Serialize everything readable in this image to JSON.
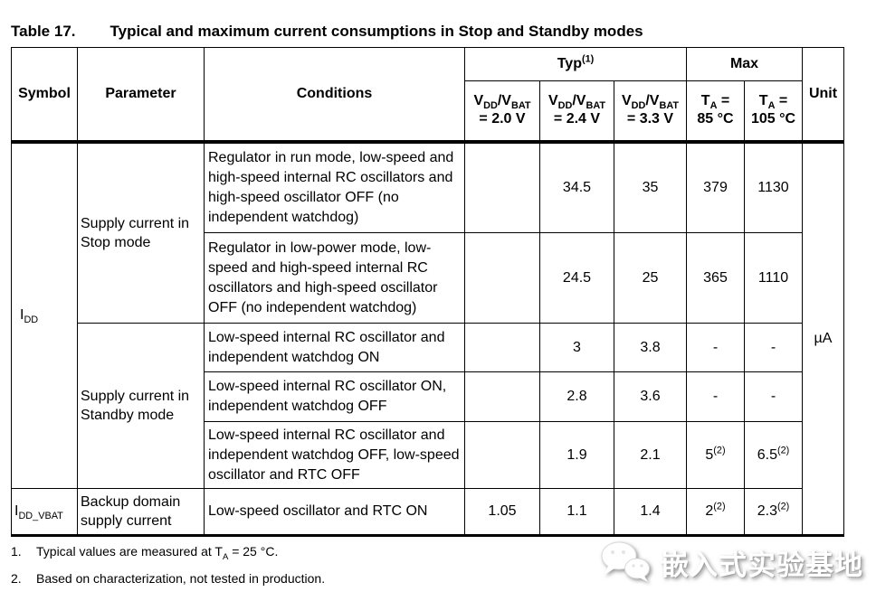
{
  "colors": {
    "border": "#000000",
    "background": "#ffffff",
    "text": "#000000",
    "watermark": "#ffffff"
  },
  "title": {
    "label": "Table 17.",
    "text": "Typical and maximum current consumptions in Stop and Standby modes"
  },
  "table": {
    "header": {
      "symbol": "Symbol",
      "parameter": "Parameter",
      "conditions": "Conditions",
      "typ_group": [
        {
          "t": "Typ"
        },
        {
          "t": "(1)",
          "m": "sup"
        }
      ],
      "max_group": "Max",
      "unit": "Unit",
      "typ_cols": [
        {
          "line1": [
            {
              "t": "V"
            },
            {
              "t": "DD",
              "m": "sub"
            },
            {
              "t": "/V"
            },
            {
              "t": "BAT",
              "m": "sub"
            }
          ],
          "line2": "= 2.0 V"
        },
        {
          "line1": [
            {
              "t": "V"
            },
            {
              "t": "DD",
              "m": "sub"
            },
            {
              "t": "/V"
            },
            {
              "t": "BAT",
              "m": "sub"
            }
          ],
          "line2": "= 2.4 V"
        },
        {
          "line1": [
            {
              "t": "V"
            },
            {
              "t": "DD",
              "m": "sub"
            },
            {
              "t": "/V"
            },
            {
              "t": "BAT",
              "m": "sub"
            }
          ],
          "line2": "= 3.3 V"
        }
      ],
      "max_cols": [
        {
          "line1": [
            {
              "t": "T"
            },
            {
              "t": "A",
              "m": "sub"
            },
            {
              "t": " ="
            }
          ],
          "line2": "85 °C"
        },
        {
          "line1": [
            {
              "t": "T"
            },
            {
              "t": "A",
              "m": "sub"
            },
            {
              "t": " ="
            }
          ],
          "line2": "105 °C"
        }
      ]
    },
    "symbols": {
      "idd": [
        {
          "t": "I"
        },
        {
          "t": "DD",
          "m": "sub"
        }
      ],
      "idd_vbat": [
        {
          "t": "I"
        },
        {
          "t": "DD_VBAT",
          "m": "sub"
        }
      ]
    },
    "parameters": {
      "stop": "Supply current in Stop mode",
      "standby": "Supply current in Standby mode",
      "backup": "Backup domain supply current"
    },
    "unit_value": "µA",
    "rows": [
      {
        "conditions": "Regulator in run mode, low-speed and high-speed internal RC oscillators and high-speed oscillator OFF (no independent watchdog)",
        "typ_20": "",
        "typ_24": "34.5",
        "typ_33": "35",
        "max_85": "379",
        "max_105": "1130"
      },
      {
        "conditions": "Regulator in low-power mode, low-speed and high-speed internal RC oscillators and high-speed oscillator OFF (no independent watchdog)",
        "typ_20": "",
        "typ_24": "24.5",
        "typ_33": "25",
        "max_85": "365",
        "max_105": "1110"
      },
      {
        "conditions": "Low-speed internal RC oscillator and independent watchdog ON",
        "typ_20": "",
        "typ_24": "3",
        "typ_33": "3.8",
        "max_85": "-",
        "max_105": "-"
      },
      {
        "conditions": "Low-speed internal RC oscillator ON, independent watchdog OFF",
        "typ_20": "",
        "typ_24": "2.8",
        "typ_33": "3.6",
        "max_85": "-",
        "max_105": "-"
      },
      {
        "conditions": "Low-speed internal RC oscillator and independent watchdog OFF, low-speed oscillator and RTC OFF",
        "typ_20": "",
        "typ_24": "1.9",
        "typ_33": "2.1",
        "max_85": [
          {
            "t": "5"
          },
          {
            "t": "(2)",
            "m": "sup"
          }
        ],
        "max_105": [
          {
            "t": "6.5"
          },
          {
            "t": "(2)",
            "m": "sup"
          }
        ]
      },
      {
        "conditions": "Low-speed oscillator and RTC ON",
        "typ_20": "1.05",
        "typ_24": "1.1",
        "typ_33": "1.4",
        "max_85": [
          {
            "t": "2"
          },
          {
            "t": "(2)",
            "m": "sup"
          }
        ],
        "max_105": [
          {
            "t": "2.3"
          },
          {
            "t": "(2)",
            "m": "sup"
          }
        ]
      }
    ]
  },
  "footnotes": [
    {
      "num": "1.",
      "text": [
        {
          "t": "Typical values are measured at T"
        },
        {
          "t": "A",
          "m": "sub"
        },
        {
          "t": " = 25 °C."
        }
      ]
    },
    {
      "num": "2.",
      "text": "Based on characterization, not tested in production."
    }
  ],
  "watermark": {
    "text": "嵌入式实验基地",
    "icon": "wechat-icon"
  }
}
